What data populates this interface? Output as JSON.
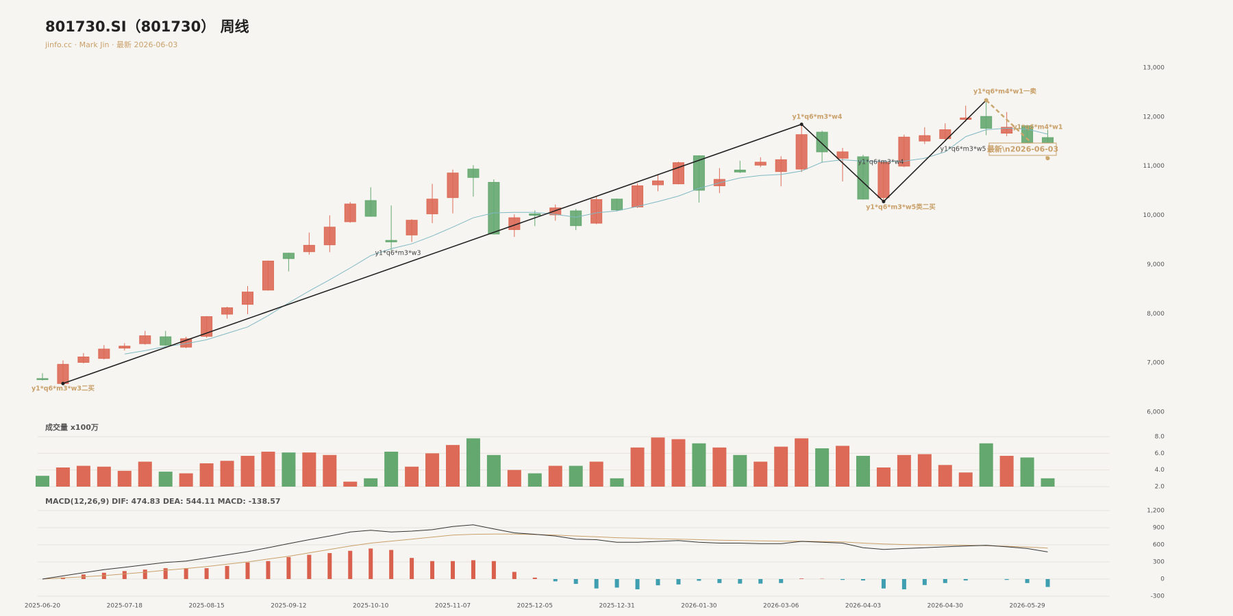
{
  "chart_data": [
    {
      "type": "candlestick",
      "title": "801730.SI（801730） 周线",
      "subtitle": "jinfo.cc · Mark Jin · 最新 2026-06-03",
      "categories": [
        "2025-06-20",
        null,
        null,
        null,
        "2025-07-18",
        null,
        null,
        null,
        "2025-08-15",
        null,
        null,
        null,
        "2025-09-12",
        null,
        null,
        null,
        "2025-10-10",
        null,
        null,
        null,
        "2025-11-07",
        null,
        null,
        null,
        "2025-12-05",
        null,
        null,
        null,
        "2025-12-31",
        null,
        null,
        null,
        "2026-01-30",
        null,
        null,
        null,
        "2026-03-06",
        null,
        null,
        null,
        "2026-04-03",
        null,
        null,
        null,
        "2026-04-30",
        null,
        null,
        null,
        "2026-05-29",
        null
      ],
      "open": [
        6680,
        6580,
        7010,
        7090,
        7300,
        7390,
        7530,
        7320,
        7540,
        7990,
        8190,
        8480,
        9230,
        9260,
        9400,
        9870,
        10300,
        9490,
        9600,
        10030,
        10360,
        10940,
        10670,
        9710,
        10030,
        10010,
        10090,
        9840,
        10330,
        10170,
        10620,
        10640,
        11210,
        10600,
        10920,
        11020,
        10890,
        10940,
        11690,
        11160,
        11190,
        10360,
        11000,
        11510,
        11560,
        11950,
        12010,
        11670,
        11820,
        11580
      ],
      "high": [
        6790,
        7050,
        7200,
        7360,
        7400,
        7650,
        7650,
        7530,
        7950,
        8140,
        8560,
        9080,
        9240,
        9650,
        10000,
        10270,
        10570,
        10200,
        9920,
        10640,
        10930,
        11020,
        10730,
        10020,
        10100,
        10220,
        10130,
        10390,
        10340,
        10650,
        10840,
        11090,
        11220,
        10960,
        11110,
        11180,
        11200,
        11860,
        11720,
        11370,
        11230,
        11100,
        11640,
        11790,
        11870,
        12230,
        12340,
        12100,
        11840,
        11740
      ],
      "low": [
        6640,
        6550,
        6990,
        7070,
        7250,
        7370,
        7350,
        7300,
        7510,
        7900,
        7990,
        8470,
        8860,
        9200,
        9250,
        9850,
        9970,
        9280,
        9460,
        9840,
        10040,
        10380,
        9610,
        9560,
        9780,
        9890,
        9700,
        9820,
        10080,
        10150,
        10490,
        10630,
        10260,
        10450,
        10860,
        10980,
        10590,
        10880,
        11070,
        10690,
        10320,
        10290,
        10980,
        11450,
        11500,
        11900,
        11630,
        11610,
        11420,
        11240
      ],
      "close": [
        6660,
        6970,
        7120,
        7280,
        7340,
        7550,
        7360,
        7490,
        7940,
        8120,
        8440,
        9070,
        9120,
        9390,
        9760,
        10230,
        9980,
        9460,
        9900,
        10330,
        10860,
        10770,
        9620,
        9950,
        10000,
        10150,
        9790,
        10320,
        10110,
        10600,
        10700,
        11070,
        10510,
        10730,
        10880,
        11080,
        11130,
        11640,
        11290,
        11290,
        10330,
        11080,
        11590,
        11620,
        11740,
        11980,
        11770,
        11790,
        11480,
        11320
      ],
      "up_color": "#dc6a56",
      "down_color": "#64a870",
      "ma": {
        "color": "#7fb8c4",
        "values": [
          null,
          null,
          null,
          null,
          7180,
          7250,
          7330,
          7390,
          7470,
          7600,
          7730,
          7960,
          8220,
          8460,
          8690,
          8930,
          9180,
          9320,
          9420,
          9580,
          9760,
          9950,
          10050,
          10060,
          10060,
          10020,
          9960,
          10050,
          10090,
          10180,
          10280,
          10390,
          10550,
          10660,
          10760,
          10810,
          10830,
          10900,
          11080,
          11130,
          11100,
          11090,
          11100,
          11160,
          11290,
          11600,
          11740,
          11770,
          11750,
          11650
        ]
      },
      "zigzag": {
        "color": "#222222",
        "x": [
          1,
          37,
          41,
          46
        ],
        "values": [
          6580,
          11850,
          10280,
          12340
        ]
      },
      "pending": {
        "color": "#c9a66b",
        "x": [
          46,
          49
        ],
        "values": [
          12340,
          11160
        ]
      },
      "annotations": [
        "y1*q6*m3*w3二买",
        "y1*q6*m3*w3",
        "y1*q6*m3*w4",
        "y1*q6*m3*w4",
        "y1*q6*m3*w5类二买",
        "y1*q6*m3*w5",
        "y1*q6*m4*w1一卖",
        "y1*q6*m4*w1"
      ],
      "latest_label": "最新\\n2026-06-03",
      "ylim": [
        6000,
        13000
      ],
      "yticks": [
        {
          "value": 6000,
          "label": "6,000"
        },
        {
          "value": 7000,
          "label": "7,000"
        },
        {
          "value": 8000,
          "label": "8,000"
        },
        {
          "value": 9000,
          "label": "9,000"
        },
        {
          "value": 10000,
          "label": "10,000"
        },
        {
          "value": 11000,
          "label": "11,000"
        },
        {
          "value": 12000,
          "label": "12,000"
        },
        {
          "value": 13000,
          "label": "13,000"
        }
      ],
      "grid": false
    },
    {
      "type": "bar",
      "title": "成交量 x100万",
      "values": [
        3.3,
        4.3,
        4.5,
        4.4,
        3.9,
        5.0,
        3.8,
        3.6,
        4.8,
        5.1,
        5.7,
        6.2,
        6.1,
        6.1,
        5.8,
        2.6,
        3.0,
        6.2,
        4.4,
        6.0,
        7.0,
        7.8,
        5.8,
        4.0,
        3.6,
        4.5,
        4.5,
        5.0,
        3.0,
        6.7,
        7.9,
        7.7,
        7.2,
        6.7,
        5.8,
        5.0,
        6.8,
        7.8,
        6.6,
        6.9,
        5.7,
        4.3,
        5.8,
        5.9,
        4.6,
        3.7,
        7.2,
        5.7,
        5.5,
        3.0
      ],
      "ylim": [
        2,
        8
      ],
      "yticks": [
        {
          "value": 2,
          "label": "2.0"
        },
        {
          "value": 4,
          "label": "4.0"
        },
        {
          "value": 6,
          "label": "6.0"
        },
        {
          "value": 8,
          "label": "8.0"
        }
      ],
      "grid": true
    },
    {
      "type": "macd",
      "title": "MACD(12,26,9) DIF: 474.83 DEA: 544.11 MACD: -138.57",
      "dif": {
        "color": "#333333",
        "values": [
          0,
          55,
          110,
          165,
          205,
          250,
          290,
          315,
          370,
          425,
          480,
          550,
          620,
          690,
          755,
          825,
          855,
          825,
          840,
          865,
          920,
          950,
          880,
          810,
          785,
          755,
          700,
          690,
          645,
          645,
          660,
          675,
          645,
          630,
          630,
          620,
          620,
          660,
          645,
          630,
          550,
          520,
          535,
          550,
          565,
          580,
          590,
          565,
          535,
          474.83
        ]
      },
      "dea": {
        "color": "#c9a06a",
        "values": [
          0,
          20,
          40,
          60,
          90,
          120,
          155,
          185,
          220,
          260,
          300,
          350,
          400,
          460,
          520,
          580,
          630,
          665,
          700,
          735,
          770,
          785,
          790,
          788,
          780,
          770,
          755,
          740,
          725,
          715,
          705,
          700,
          690,
          680,
          675,
          670,
          665,
          662,
          658,
          650,
          630,
          615,
          605,
          600,
          595,
          590,
          585,
          575,
          560,
          544.11
        ]
      },
      "hist": {
        "up_color": "#d9604c",
        "down_color": "#3f9fb0",
        "values": [
          0,
          27,
          80,
          110,
          140,
          165,
          190,
          190,
          190,
          230,
          290,
          315,
          385,
          425,
          455,
          495,
          535,
          510,
          370,
          315,
          315,
          330,
          315,
          125,
          25,
          -40,
          -85,
          -165,
          -150,
          -180,
          -110,
          -95,
          -30,
          -70,
          -80,
          -80,
          -70,
          10,
          5,
          -15,
          -25,
          -165,
          -180,
          -105,
          -70,
          -25,
          0,
          -15,
          -70,
          -138.57
        ]
      },
      "ylim": [
        -300,
        1200
      ],
      "yticks": [
        -300,
        0,
        300,
        600,
        900,
        {
          "value": 1200,
          "label": "1,200"
        }
      ],
      "grid": true
    }
  ]
}
